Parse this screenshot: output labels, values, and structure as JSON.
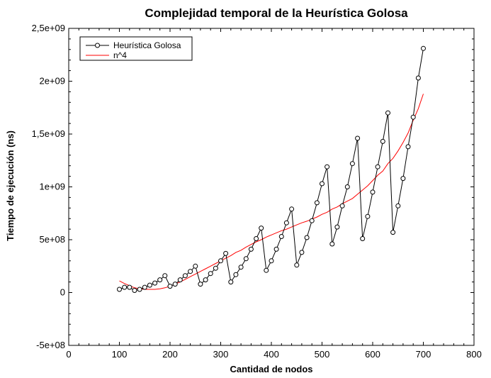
{
  "chart_data": {
    "type": "line",
    "title": "Complejidad temporal de la Heurística Golosa",
    "xlabel": "Cantidad de nodos",
    "ylabel": "Tiempo de ejecución (ns)",
    "xlim": [
      0,
      800
    ],
    "ylim": [
      -500000000,
      2500000000
    ],
    "x_ticks": [
      0,
      100,
      200,
      300,
      400,
      500,
      600,
      700,
      800
    ],
    "x_tick_labels": [
      "0",
      "100",
      "200",
      "300",
      "400",
      "500",
      "600",
      "700",
      "800"
    ],
    "y_ticks": [
      -500000000,
      0,
      500000000,
      1000000000,
      1500000000,
      2000000000,
      2500000000
    ],
    "y_tick_labels": [
      "-5e+08",
      "0",
      "5e+08",
      "1e+09",
      "1,5e+09",
      "2e+09",
      "2,5e+09"
    ],
    "grid": false,
    "legend_position": "top-left",
    "series": [
      {
        "name": "Heurística Golosa",
        "color": "#000000",
        "marker": "circle",
        "x": [
          100,
          110,
          120,
          130,
          140,
          150,
          160,
          170,
          180,
          190,
          200,
          210,
          220,
          230,
          240,
          250,
          260,
          270,
          280,
          290,
          300,
          310,
          320,
          330,
          340,
          350,
          360,
          370,
          380,
          390,
          400,
          410,
          420,
          430,
          440,
          450,
          460,
          470,
          480,
          490,
          500,
          510,
          520,
          530,
          540,
          550,
          560,
          570,
          580,
          590,
          600,
          610,
          620,
          630,
          640,
          650,
          660,
          670,
          680,
          690,
          700
        ],
        "y": [
          30000000,
          50000000,
          50000000,
          20000000,
          30000000,
          50000000,
          70000000,
          90000000,
          120000000,
          160000000,
          60000000,
          80000000,
          120000000,
          160000000,
          200000000,
          250000000,
          80000000,
          120000000,
          180000000,
          230000000,
          300000000,
          370000000,
          100000000,
          170000000,
          240000000,
          320000000,
          410000000,
          510000000,
          610000000,
          210000000,
          300000000,
          410000000,
          530000000,
          660000000,
          790000000,
          260000000,
          380000000,
          520000000,
          680000000,
          850000000,
          1030000000,
          1190000000,
          460000000,
          620000000,
          820000000,
          1000000000,
          1220000000,
          1460000000,
          510000000,
          720000000,
          950000000,
          1190000000,
          1430000000,
          1700000000,
          570000000,
          820000000,
          1080000000,
          1380000000,
          1660000000,
          2030000000,
          2310000000
        ]
      },
      {
        "name": "n^4",
        "color": "#ff0000",
        "marker": "none",
        "x": [
          100,
          110,
          120,
          130,
          140,
          150,
          160,
          170,
          180,
          190,
          200,
          210,
          220,
          230,
          240,
          250,
          260,
          270,
          280,
          290,
          300,
          310,
          320,
          330,
          340,
          350,
          360,
          370,
          380,
          390,
          400,
          410,
          420,
          430,
          440,
          450,
          460,
          470,
          480,
          490,
          500,
          510,
          520,
          530,
          540,
          550,
          560,
          570,
          580,
          590,
          600,
          610,
          620,
          630,
          640,
          650,
          660,
          670,
          680,
          690,
          700
        ],
        "y": [
          110000000,
          85000000,
          65000000,
          45000000,
          35000000,
          30000000,
          30000000,
          30000000,
          35000000,
          45000000,
          60000000,
          80000000,
          100000000,
          125000000,
          150000000,
          175000000,
          200000000,
          225000000,
          250000000,
          275000000,
          300000000,
          325000000,
          350000000,
          380000000,
          400000000,
          430000000,
          455000000,
          480000000,
          500000000,
          525000000,
          545000000,
          565000000,
          585000000,
          600000000,
          620000000,
          640000000,
          660000000,
          675000000,
          695000000,
          715000000,
          740000000,
          760000000,
          790000000,
          810000000,
          840000000,
          865000000,
          890000000,
          930000000,
          970000000,
          1010000000,
          1060000000,
          1110000000,
          1150000000,
          1220000000,
          1270000000,
          1340000000,
          1420000000,
          1510000000,
          1630000000,
          1740000000,
          1880000000
        ]
      }
    ]
  }
}
